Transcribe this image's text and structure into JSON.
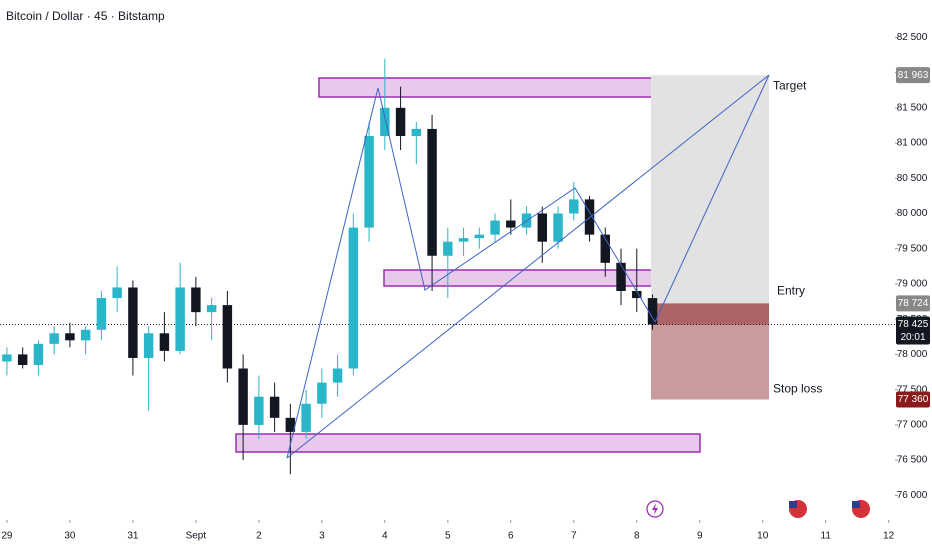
{
  "chart_data": {
    "type": "candlestick",
    "title": "Bitcoin / Dollar · 45 · Bitstamp",
    "x": [
      0,
      0.25,
      0.5,
      0.75,
      1,
      1.25,
      1.5,
      1.75,
      2,
      2.25,
      2.5,
      2.75,
      3,
      3.25,
      3.5,
      3.75,
      4,
      4.25,
      4.5,
      4.75,
      5,
      5.25,
      5.5,
      5.75,
      6,
      6.25,
      6.5,
      6.75,
      7,
      7.25,
      7.5,
      7.75,
      8,
      8.25,
      8.5,
      8.75,
      9,
      9.25,
      9.5,
      9.75,
      10,
      10.25
    ],
    "open": [
      77900,
      78000,
      77850,
      78150,
      78300,
      78200,
      78350,
      78800,
      78950,
      77950,
      78300,
      78050,
      78950,
      78600,
      78700,
      77800,
      77000,
      77400,
      77100,
      76900,
      77300,
      77600,
      77800,
      79800,
      81100,
      81500,
      81100,
      81200,
      79400,
      79600,
      79650,
      79700,
      79900,
      79800,
      80000,
      79600,
      80000,
      80200,
      79700,
      79300,
      78900,
      78800
    ],
    "high": [
      78100,
      78100,
      78200,
      78400,
      78450,
      78400,
      78900,
      79250,
      79050,
      78400,
      78600,
      79300,
      79100,
      78800,
      78900,
      78000,
      77700,
      77600,
      77300,
      77500,
      77800,
      78000,
      80000,
      81300,
      82200,
      81800,
      81300,
      81400,
      79800,
      79800,
      79800,
      80000,
      80200,
      80100,
      80100,
      80100,
      80450,
      80250,
      79800,
      79500,
      79500,
      78850
    ],
    "low": [
      77700,
      77800,
      77700,
      78000,
      78100,
      78000,
      78200,
      78600,
      77700,
      77200,
      77900,
      78000,
      78400,
      78200,
      77600,
      76500,
      76800,
      76900,
      76300,
      76800,
      77100,
      77400,
      77700,
      79600,
      80900,
      80900,
      80700,
      78900,
      78800,
      79400,
      79500,
      79600,
      79700,
      79700,
      79300,
      79500,
      79900,
      79600,
      79100,
      78700,
      78600,
      78350
    ],
    "close": [
      78000,
      77850,
      78150,
      78300,
      78200,
      78350,
      78800,
      78950,
      77950,
      78300,
      78050,
      78950,
      78600,
      78700,
      77800,
      77000,
      77400,
      77100,
      76900,
      77300,
      77600,
      77800,
      79800,
      81100,
      81500,
      81100,
      81200,
      79400,
      79600,
      79650,
      79700,
      79900,
      79800,
      80000,
      79600,
      80000,
      80200,
      79700,
      79300,
      78900,
      78800,
      78425
    ],
    "up_color": "#29b6c9",
    "down_color": "#131722",
    "xlim": [
      -0.11,
      14.1
    ],
    "ylim": [
      75650,
      83030
    ],
    "xticks": [
      {
        "value": 0,
        "label": "29"
      },
      {
        "value": 1,
        "label": "30"
      },
      {
        "value": 2,
        "label": "31"
      },
      {
        "value": 3,
        "label": "Sept"
      },
      {
        "value": 4,
        "label": "2"
      },
      {
        "value": 5,
        "label": "3"
      },
      {
        "value": 6,
        "label": "4"
      },
      {
        "value": 7,
        "label": "5"
      },
      {
        "value": 8,
        "label": "6"
      },
      {
        "value": 9,
        "label": "7"
      },
      {
        "value": 10,
        "label": "8"
      },
      {
        "value": 11,
        "label": "9"
      },
      {
        "value": 12,
        "label": "10"
      },
      {
        "value": 13,
        "label": "11"
      },
      {
        "value": 14,
        "label": "12"
      }
    ],
    "yticks": [
      {
        "value": 76000,
        "label": "76 000"
      },
      {
        "value": 76500,
        "label": "76 500"
      },
      {
        "value": 77000,
        "label": "77 000"
      },
      {
        "value": 77500,
        "label": "77 500"
      },
      {
        "value": 78000,
        "label": "78 000"
      },
      {
        "value": 78500,
        "label": "78 500"
      },
      {
        "value": 79000,
        "label": "79 000"
      },
      {
        "value": 79500,
        "label": "79 500"
      },
      {
        "value": 80000,
        "label": "80 000"
      },
      {
        "value": 80500,
        "label": "80 500"
      },
      {
        "value": 81000,
        "label": "81 000"
      },
      {
        "value": 81500,
        "label": "81 500"
      },
      {
        "value": 82000,
        "label": "82 000"
      },
      {
        "value": 82500,
        "label": "82 500"
      }
    ],
    "grid": false,
    "levels": {
      "target": {
        "text": "Target",
        "price": {
          "value": 81963,
          "label": "81 963"
        },
        "color": "#888888"
      },
      "entry": {
        "text": "Entry",
        "price": {
          "value": 78724,
          "label": "78 724"
        },
        "color": "#888888"
      },
      "stop": {
        "text": "Stop loss",
        "price": {
          "value": 77360,
          "label": "77 360"
        },
        "color": "#8b1a1a"
      }
    },
    "last_price": {
      "price": {
        "value": 78425,
        "label": "78 425"
      },
      "countdown": "20:01",
      "color": "#131722"
    }
  }
}
